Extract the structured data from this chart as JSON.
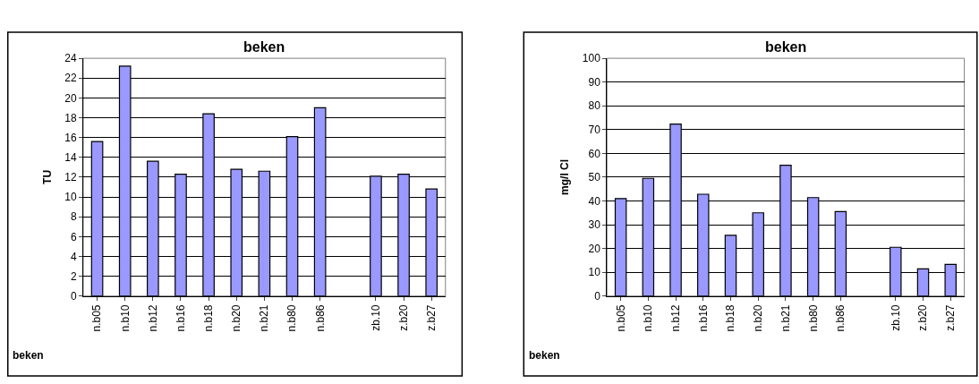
{
  "chart_data": [
    {
      "type": "bar",
      "title": "beken",
      "ylabel": "TU",
      "categories": [
        "n.b05",
        "n.b10",
        "n.b12",
        "n.b16",
        "n.b18",
        "n.b20",
        "n.b21",
        "n.b80",
        "n.b86",
        null,
        "zb.10",
        "z.b20",
        "z.b27"
      ],
      "values": [
        15.6,
        23.2,
        13.6,
        12.3,
        18.4,
        12.8,
        12.6,
        16.1,
        19.0,
        null,
        12.1,
        12.3,
        10.8
      ],
      "color": "#9999ff",
      "ylim": [
        0,
        24
      ],
      "yticks": [
        0,
        2,
        4,
        6,
        8,
        10,
        12,
        14,
        16,
        18,
        20,
        22,
        24
      ],
      "grid": "y",
      "annotations": [
        "beken"
      ]
    },
    {
      "type": "bar",
      "title": "beken",
      "ylabel": "mg/l Cl",
      "categories": [
        "n.b05",
        "n.b10",
        "n.b12",
        "n.b16",
        "n.b18",
        "n.b20",
        "n.b21",
        "n.b80",
        "n.b86",
        null,
        "zb.10",
        "z.b20",
        "z.b27"
      ],
      "values": [
        41,
        49.5,
        72.3,
        42.8,
        25.5,
        35,
        55,
        41.4,
        35.5,
        null,
        20.5,
        11.4,
        13.3
      ],
      "color": "#9999ff",
      "ylim": [
        0,
        100
      ],
      "yticks": [
        0,
        10,
        20,
        30,
        40,
        50,
        60,
        70,
        80,
        90,
        100
      ],
      "grid": "y",
      "annotations": [
        "beken"
      ]
    }
  ]
}
